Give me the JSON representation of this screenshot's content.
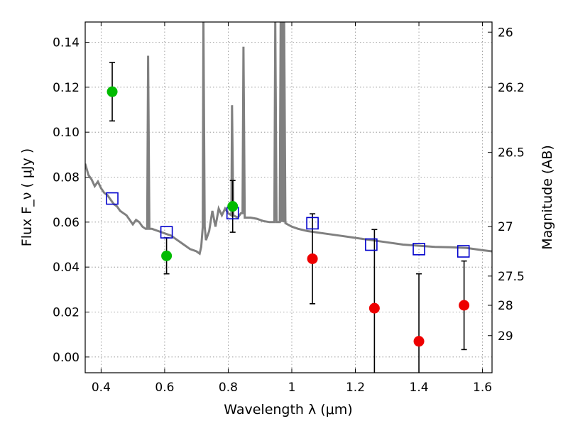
{
  "chart_data": {
    "type": "scatter",
    "xlabel": "Wavelength  λ (μm)",
    "ylabel": "Flux  F_ν  ( μJy )",
    "y2label": "Magnitude (AB)",
    "xlim": [
      0.35,
      1.63
    ],
    "ylim": [
      -0.007,
      0.149
    ],
    "grid": true,
    "x_ticks": [
      {
        "value": 0.4,
        "label": "0.4"
      },
      {
        "value": 0.6,
        "label": "0.6"
      },
      {
        "value": 0.8,
        "label": "0.8"
      },
      {
        "value": 1.0,
        "label": "1"
      },
      {
        "value": 1.2,
        "label": "1.2"
      },
      {
        "value": 1.4,
        "label": "1.4"
      },
      {
        "value": 1.6,
        "label": "1.6"
      }
    ],
    "y_ticks": [
      {
        "value": 0.0,
        "label": "0.00"
      },
      {
        "value": 0.02,
        "label": "0.02"
      },
      {
        "value": 0.04,
        "label": "0.04"
      },
      {
        "value": 0.06,
        "label": "0.06"
      },
      {
        "value": 0.08,
        "label": "0.08"
      },
      {
        "value": 0.1,
        "label": "0.10"
      },
      {
        "value": 0.12,
        "label": "0.12"
      },
      {
        "value": 0.14,
        "label": "0.14"
      }
    ],
    "y2_ticks": [
      {
        "flux": 0.1445,
        "label": "26"
      },
      {
        "flux": 0.12,
        "label": "26.2"
      },
      {
        "flux": 0.091,
        "label": "26.5"
      },
      {
        "flux": 0.058,
        "label": "27"
      },
      {
        "flux": 0.036,
        "label": "27.5"
      },
      {
        "flux": 0.023,
        "label": "28"
      },
      {
        "flux": 0.0095,
        "label": "29"
      }
    ],
    "model_spectrum": [
      [
        0.35,
        0.086
      ],
      [
        0.36,
        0.081
      ],
      [
        0.37,
        0.079
      ],
      [
        0.38,
        0.076
      ],
      [
        0.39,
        0.078
      ],
      [
        0.4,
        0.075
      ],
      [
        0.41,
        0.073
      ],
      [
        0.42,
        0.072
      ],
      [
        0.43,
        0.07
      ],
      [
        0.44,
        0.068
      ],
      [
        0.45,
        0.067
      ],
      [
        0.46,
        0.065
      ],
      [
        0.47,
        0.064
      ],
      [
        0.48,
        0.063
      ],
      [
        0.49,
        0.061
      ],
      [
        0.5,
        0.059
      ],
      [
        0.51,
        0.061
      ],
      [
        0.52,
        0.06
      ],
      [
        0.53,
        0.058
      ],
      [
        0.54,
        0.057
      ],
      [
        0.545,
        0.057
      ],
      [
        0.548,
        0.134
      ],
      [
        0.552,
        0.057
      ],
      [
        0.56,
        0.057
      ],
      [
        0.58,
        0.056
      ],
      [
        0.6,
        0.055
      ],
      [
        0.62,
        0.054
      ],
      [
        0.64,
        0.052
      ],
      [
        0.66,
        0.05
      ],
      [
        0.68,
        0.048
      ],
      [
        0.7,
        0.047
      ],
      [
        0.71,
        0.046
      ],
      [
        0.715,
        0.049
      ],
      [
        0.72,
        0.058
      ],
      [
        0.722,
        0.15
      ],
      [
        0.726,
        0.058
      ],
      [
        0.73,
        0.052
      ],
      [
        0.74,
        0.056
      ],
      [
        0.75,
        0.065
      ],
      [
        0.76,
        0.058
      ],
      [
        0.77,
        0.066
      ],
      [
        0.78,
        0.063
      ],
      [
        0.79,
        0.066
      ],
      [
        0.8,
        0.064
      ],
      [
        0.81,
        0.063
      ],
      [
        0.812,
        0.112
      ],
      [
        0.816,
        0.063
      ],
      [
        0.83,
        0.062
      ],
      [
        0.84,
        0.064
      ],
      [
        0.845,
        0.064
      ],
      [
        0.848,
        0.138
      ],
      [
        0.852,
        0.062
      ],
      [
        0.87,
        0.062
      ],
      [
        0.89,
        0.0615
      ],
      [
        0.91,
        0.0605
      ],
      [
        0.93,
        0.06
      ],
      [
        0.945,
        0.06
      ],
      [
        0.948,
        0.15
      ],
      [
        0.952,
        0.06
      ],
      [
        0.962,
        0.06
      ],
      [
        0.965,
        0.15
      ],
      [
        0.968,
        0.06
      ],
      [
        0.97,
        0.15
      ],
      [
        0.974,
        0.06
      ],
      [
        0.976,
        0.15
      ],
      [
        0.98,
        0.0595
      ],
      [
        1.0,
        0.058
      ],
      [
        1.02,
        0.057
      ],
      [
        1.05,
        0.056
      ],
      [
        1.1,
        0.055
      ],
      [
        1.15,
        0.054
      ],
      [
        1.2,
        0.053
      ],
      [
        1.25,
        0.052
      ],
      [
        1.3,
        0.051
      ],
      [
        1.35,
        0.05
      ],
      [
        1.4,
        0.0495
      ],
      [
        1.45,
        0.049
      ],
      [
        1.5,
        0.0488
      ],
      [
        1.55,
        0.0485
      ],
      [
        1.6,
        0.0475
      ],
      [
        1.63,
        0.047
      ]
    ],
    "model_photometry": [
      {
        "x": 0.435,
        "y": 0.0705
      },
      {
        "x": 0.606,
        "y": 0.0555
      },
      {
        "x": 0.814,
        "y": 0.064
      },
      {
        "x": 1.065,
        "y": 0.0595
      },
      {
        "x": 1.25,
        "y": 0.05
      },
      {
        "x": 1.4,
        "y": 0.048
      },
      {
        "x": 1.54,
        "y": 0.047
      }
    ],
    "observed_green": [
      {
        "x": 0.435,
        "y": 0.118,
        "err": 0.013
      },
      {
        "x": 0.606,
        "y": 0.045,
        "err": 0.008
      },
      {
        "x": 0.814,
        "y": 0.067,
        "err": 0.0115
      }
    ],
    "observed_red": [
      {
        "x": 1.065,
        "y": 0.0437,
        "err": 0.02
      },
      {
        "x": 1.26,
        "y": 0.0217,
        "err": 0.035
      },
      {
        "x": 1.4,
        "y": 0.007,
        "err": 0.03
      },
      {
        "x": 1.542,
        "y": 0.023,
        "err": 0.0197
      }
    ],
    "colors": {
      "spectrum": "#808080",
      "model_marker": "#0000cc",
      "green": "#00bb00",
      "red": "#ee0000",
      "errorbar": "#000000",
      "grid": "#888888"
    }
  }
}
